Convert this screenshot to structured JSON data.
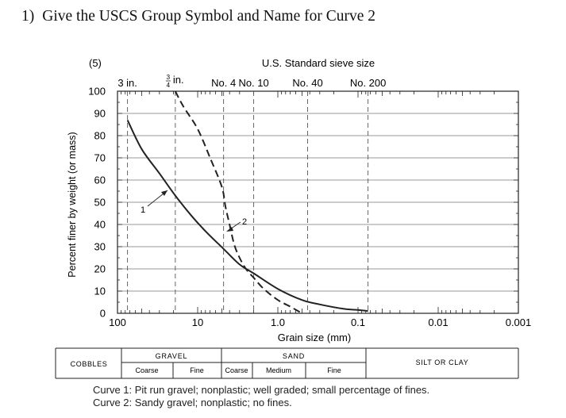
{
  "question": {
    "number": "1)",
    "text": "Give the USCS Group Symbol and Name for Curve 2"
  },
  "chart_data": {
    "type": "line",
    "figure_label": "(5)",
    "top_title": "U.S. Standard sieve size",
    "sieves": [
      {
        "label": "3 in.",
        "size_mm": 75
      },
      {
        "label_num": "3",
        "label_den": "4",
        "label_unit": "in.",
        "size_mm": 19
      },
      {
        "label": "No. 4",
        "size_mm": 4.75
      },
      {
        "label": "No. 10",
        "size_mm": 2.0
      },
      {
        "label": "No. 40",
        "size_mm": 0.425
      },
      {
        "label": "No. 200",
        "size_mm": 0.075
      }
    ],
    "xlabel": "Grain size (mm)",
    "ylabel": "Percent finer by weight (or mass)",
    "x_scale": "log",
    "x_reversed": true,
    "xlim": [
      100,
      0.001
    ],
    "ylim": [
      0,
      100
    ],
    "x_ticks": [
      {
        "value": 100,
        "label": "100"
      },
      {
        "value": 10,
        "label": "10"
      },
      {
        "value": 1,
        "label": "1.0"
      },
      {
        "value": 0.1,
        "label": "0.1"
      },
      {
        "value": 0.01,
        "label": "0.01"
      },
      {
        "value": 0.001,
        "label": "0.001"
      }
    ],
    "y_ticks": [
      0,
      10,
      20,
      30,
      40,
      50,
      60,
      70,
      80,
      90,
      100
    ],
    "series": [
      {
        "name": "1",
        "style": "solid",
        "x": [
          75,
          50,
          30,
          19,
          12,
          8,
          4.75,
          3,
          2,
          1,
          0.5,
          0.3,
          0.15,
          0.1,
          0.075
        ],
        "y": [
          87,
          74,
          63,
          53,
          44,
          37,
          29,
          22,
          18,
          11,
          6,
          4,
          2,
          1.5,
          1
        ]
      },
      {
        "name": "2",
        "style": "dashed",
        "x": [
          19,
          15,
          10,
          7,
          5,
          4.5,
          4,
          3.5,
          3,
          2.5,
          2,
          1.5,
          1,
          0.7,
          0.5
        ],
        "y": [
          100,
          93,
          83,
          70,
          57,
          48,
          40,
          31,
          25,
          20,
          16,
          11,
          6,
          3,
          0
        ]
      }
    ],
    "classification": {
      "cobbles": "COBBLES",
      "gravel": "GRAVEL",
      "gravel_coarse": "Coarse",
      "gravel_fine": "Fine",
      "sand": "SAND",
      "sand_coarse": "Coarse",
      "sand_medium": "Medium",
      "sand_fine": "Fine",
      "silt_clay": "SILT OR CLAY"
    },
    "captions": [
      "Curve 1:  Pit run gravel; nonplastic; well graded; small percentage of fines.",
      "Curve 2:  Sandy gravel; nonplastic; no fines."
    ]
  }
}
